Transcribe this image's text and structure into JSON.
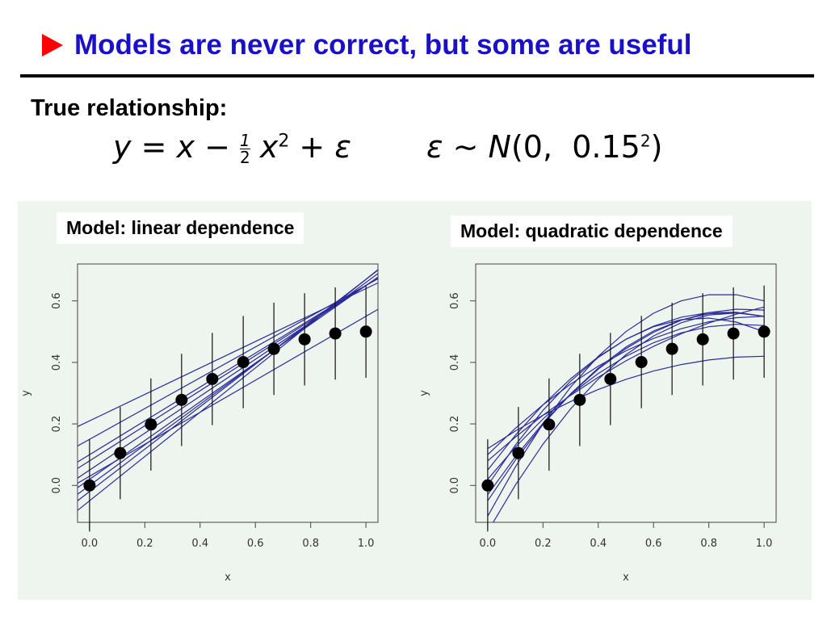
{
  "header": {
    "title": "Models are never correct, but some are useful",
    "bullet_color": "#ff0000",
    "title_color": "#1a10c8"
  },
  "intro": {
    "label": "True relationship:",
    "equation_model": "y = x − ½ x² + ε",
    "equation_noise": "ε ∼ N(0,  0.15²)"
  },
  "panels": [
    {
      "label": "Model: linear dependence"
    },
    {
      "label": "Model: quadratic dependence"
    }
  ],
  "chart_data": [
    {
      "type": "scatter",
      "title": "",
      "model": "linear",
      "xlabel": "x",
      "ylabel": "y",
      "xlim": [
        0.0,
        1.0
      ],
      "ylim": [
        -0.12,
        0.72
      ],
      "xticks": [
        "0.0",
        "0.2",
        "0.4",
        "0.6",
        "0.8",
        "1.0"
      ],
      "yticks": [
        "0.0",
        "0.2",
        "0.4",
        "0.6"
      ],
      "points": {
        "x": [
          0.0,
          0.111,
          0.222,
          0.333,
          0.444,
          0.556,
          0.667,
          0.778,
          0.889,
          1.0
        ],
        "y": [
          0.0,
          0.105,
          0.198,
          0.278,
          0.346,
          0.401,
          0.444,
          0.475,
          0.494,
          0.5
        ],
        "error_bar": 0.15
      },
      "fits": [
        [
          0.21,
          0.43
        ],
        [
          0.15,
          0.5
        ],
        [
          0.1,
          0.55
        ],
        [
          0.05,
          0.6
        ],
        [
          0.02,
          0.63
        ],
        [
          0.0,
          0.66
        ],
        [
          -0.02,
          0.69
        ],
        [
          -0.05,
          0.72
        ],
        [
          0.08,
          0.57
        ],
        [
          0.03,
          0.52
        ]
      ],
      "line_color": "#2b2b9a"
    },
    {
      "type": "scatter",
      "title": "",
      "model": "quadratic",
      "xlabel": "x",
      "ylabel": "y",
      "xlim": [
        0.0,
        1.0
      ],
      "ylim": [
        -0.12,
        0.72
      ],
      "xticks": [
        "0.0",
        "0.2",
        "0.4",
        "0.6",
        "0.8",
        "1.0"
      ],
      "yticks": [
        "0.0",
        "0.2",
        "0.4",
        "0.6"
      ],
      "points": {
        "x": [
          0.0,
          0.111,
          0.222,
          0.333,
          0.444,
          0.556,
          0.667,
          0.778,
          0.889,
          1.0
        ],
        "y": [
          0.0,
          0.105,
          0.198,
          0.278,
          0.346,
          0.401,
          0.444,
          0.475,
          0.494,
          0.5
        ],
        "error_bar": 0.15
      },
      "fits": [
        [
          0.12,
          0.6,
          -0.3
        ],
        [
          0.08,
          0.8,
          -0.3
        ],
        [
          0.05,
          1.2,
          -0.7
        ],
        [
          0.0,
          1.4,
          -0.9
        ],
        [
          -0.05,
          1.4,
          -0.8
        ],
        [
          -0.1,
          1.7,
          -1.0
        ],
        [
          -0.15,
          1.6,
          -0.9
        ],
        [
          0.02,
          1.1,
          -0.6
        ],
        [
          -0.03,
          1.3,
          -0.7
        ],
        [
          0.1,
          0.9,
          -0.45
        ]
      ],
      "line_color": "#2b2b9a"
    }
  ]
}
